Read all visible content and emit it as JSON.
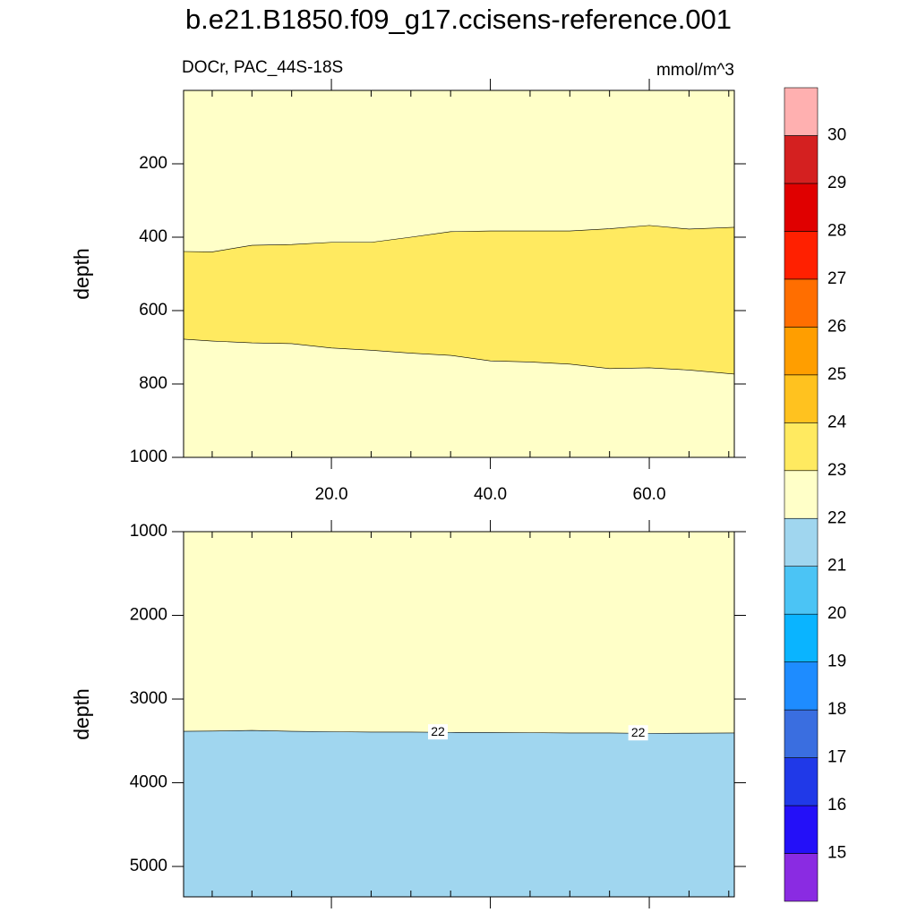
{
  "chart_data": [
    {
      "type": "contour",
      "title": "b.e21.B1850.f09_g17.ccisens-reference.001",
      "subtitle": "DOCr, PAC_44S-18S",
      "units": "mmol/m^3",
      "y_label": "depth",
      "xlim": [
        1.4,
        70.7
      ],
      "ylim": [
        0,
        1000
      ],
      "y_inverted": true,
      "xticks": [
        {
          "value": 20,
          "label": "20.0"
        },
        {
          "value": 40,
          "label": "40.0"
        },
        {
          "value": 60,
          "label": "60.0"
        }
      ],
      "xminorticks": [
        5,
        10,
        15,
        25,
        30,
        35,
        45,
        50,
        55,
        65,
        70
      ],
      "yticks": [
        200,
        400,
        600,
        800,
        1000
      ],
      "x": [
        1.4,
        5,
        10,
        15,
        20,
        25,
        30,
        35,
        40,
        45,
        50,
        55,
        60,
        65,
        70.7
      ],
      "contours": [
        {
          "level": 23,
          "values": [
            439,
            440,
            422,
            420,
            414,
            414,
            400,
            385,
            383,
            383,
            383,
            377,
            368,
            378,
            373
          ]
        },
        {
          "level": 23,
          "values": [
            678,
            683,
            688,
            690,
            702,
            708,
            716,
            722,
            737,
            740,
            746,
            758,
            756,
            762,
            773
          ]
        }
      ],
      "fills": [
        "#ffffc8",
        "#ffea60",
        "#ffffc8"
      ],
      "colorbar": {
        "levels": [
          15,
          16,
          17,
          18,
          19,
          20,
          21,
          22,
          23,
          24,
          25,
          26,
          27,
          28,
          29,
          30
        ],
        "colors": [
          "#8a2be2",
          "#2410f8",
          "#2039e8",
          "#3a6ee0",
          "#1e8cff",
          "#0ab4ff",
          "#4bc4f5",
          "#a0d6ef",
          "#ffffc8",
          "#ffea60",
          "#ffc21f",
          "#ff9e00",
          "#ff6e00",
          "#ff2000",
          "#e00000",
          "#d42020",
          "#ffb0b0"
        ]
      }
    },
    {
      "type": "contour",
      "y_label": "depth",
      "xlim": [
        1.4,
        70.7
      ],
      "ylim": [
        1000,
        5363
      ],
      "y_inverted": true,
      "xticks": [
        20,
        40,
        60
      ],
      "xminorticks": [
        5,
        10,
        15,
        25,
        30,
        35,
        45,
        50,
        55,
        65,
        70
      ],
      "yticks": [
        1000,
        2000,
        3000,
        4000,
        5000
      ],
      "x": [
        1.4,
        5,
        10,
        15,
        20,
        25,
        30,
        35,
        40,
        45,
        50,
        55,
        60,
        65,
        70.7
      ],
      "contours": [
        {
          "level": 22,
          "label_x": [
            33.4,
            58.6
          ],
          "values": [
            3385,
            3383,
            3375,
            3385,
            3390,
            3395,
            3395,
            3398,
            3400,
            3402,
            3405,
            3405,
            3410,
            3408,
            3405
          ]
        }
      ],
      "fills": [
        "#ffffc8",
        "#a0d6ef"
      ]
    }
  ]
}
